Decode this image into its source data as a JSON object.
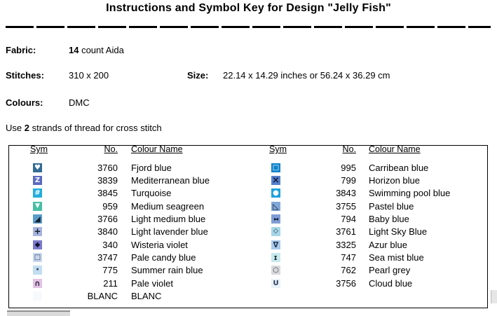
{
  "title": "Instructions and Symbol Key for Design \"Jelly Fish\"",
  "info": {
    "fabric": {
      "label": "Fabric:",
      "value_bold": "14",
      "value_rest": " count Aida"
    },
    "stitches": {
      "label": "Stitches:",
      "value": "310 x 200"
    },
    "size": {
      "label": "Size:",
      "value": "22.14 x 14.29 inches or 56.24 x 36.29 cm"
    },
    "colours": {
      "label": "Colours:",
      "value": "DMC"
    },
    "strands": {
      "prefix": "Use ",
      "bold": "2",
      "suffix": " strands of thread for cross stitch"
    }
  },
  "key": {
    "headers": {
      "sym": "Sym",
      "no": "No.",
      "name": "Colour Name"
    },
    "left": [
      {
        "no": "3760",
        "name": "Fjord blue",
        "bg": "#336C94",
        "fg": "#FFFFFF",
        "glyph": "♥",
        "cls": "g10"
      },
      {
        "no": "3839",
        "name": "Mediterranean blue",
        "bg": "#5A6AC0",
        "fg": "#FFFFFF",
        "glyph": "Z",
        "cls": "g10"
      },
      {
        "no": "3845",
        "name": "Turquoise",
        "bg": "#23AEDC",
        "fg": "#FFFFFF",
        "glyph": "#",
        "cls": "g10"
      },
      {
        "no": "959",
        "name": "Medium seagreen",
        "bg": "#47BFA4",
        "fg": "#FFFFFF",
        "glyph": "▼",
        "cls": "g9"
      },
      {
        "no": "3766",
        "name": "Light medium blue",
        "bg": "#5A9CC8",
        "fg": "#14202C",
        "glyph": "◢",
        "cls": "g11"
      },
      {
        "no": "3840",
        "name": "Light lavender blue",
        "bg": "#A8B5E0",
        "fg": "#14202C",
        "glyph": "+",
        "cls": "g12"
      },
      {
        "no": "340",
        "name": "Wisteria violet",
        "bg": "#7B7BCB",
        "fg": "#141430",
        "glyph": "◆",
        "cls": "g10"
      },
      {
        "no": "3747",
        "name": "Pale candy blue",
        "bg": "#C9D7EF",
        "fg": "#2A3A55",
        "glyph": "□",
        "cls": "g10"
      },
      {
        "no": "775",
        "name": "Summer rain blue",
        "bg": "#C3DDF0",
        "fg": "#2A3A55",
        "glyph": "·",
        "cls": "g14"
      },
      {
        "no": "211",
        "name": "Pale violet",
        "bg": "#E3C3E5",
        "fg": "#3A2F45",
        "glyph": "∩",
        "cls": "g11"
      },
      {
        "no": "BLANC",
        "name": "BLANC",
        "bg": "#F6FAFC",
        "fg": "#000000",
        "glyph": "",
        "cls": "g10"
      }
    ],
    "right": [
      {
        "no": "995",
        "name": "Carribean blue",
        "bg": "#0E84CC",
        "fg": "#FFFFFF",
        "glyph": "□",
        "cls": "g10"
      },
      {
        "no": "799",
        "name": "Horizon blue",
        "bg": "#5580CC",
        "fg": "#0F1A33",
        "glyph": "×",
        "cls": "g13"
      },
      {
        "no": "3843",
        "name": "Swimming pool blue",
        "bg": "#1CA2DE",
        "fg": "#FFFFFF",
        "glyph": "●",
        "cls": "g10"
      },
      {
        "no": "3755",
        "name": "Pastel blue",
        "bg": "#81A7DA",
        "fg": "#14202C",
        "glyph": "◺",
        "cls": "g11"
      },
      {
        "no": "794",
        "name": "Baby blue",
        "bg": "#7F9DD6",
        "fg": "#101A35",
        "glyph": "▸◂",
        "cls": "pair"
      },
      {
        "no": "3761",
        "name": "Light Sky Blue",
        "bg": "#A6D7E8",
        "fg": "#1A2A40",
        "glyph": "◇",
        "cls": "g9"
      },
      {
        "no": "3325",
        "name": "Azur blue",
        "bg": "#A7CAEC",
        "fg": "#16263E",
        "glyph": "∇",
        "cls": "g11"
      },
      {
        "no": "747",
        "name": "Sea mist blue",
        "bg": "#C7EAEF",
        "fg": "#1A2A35",
        "glyph": "▸◂",
        "cls": "pair rot90"
      },
      {
        "no": "762",
        "name": "Pearl grey",
        "bg": "#D8D9DC",
        "fg": "#3C4148",
        "glyph": "○",
        "cls": "g10"
      },
      {
        "no": "3756",
        "name": "Cloud blue",
        "bg": "#E9F2F9",
        "fg": "#2A3A55",
        "glyph": "U",
        "cls": "g10"
      }
    ]
  }
}
